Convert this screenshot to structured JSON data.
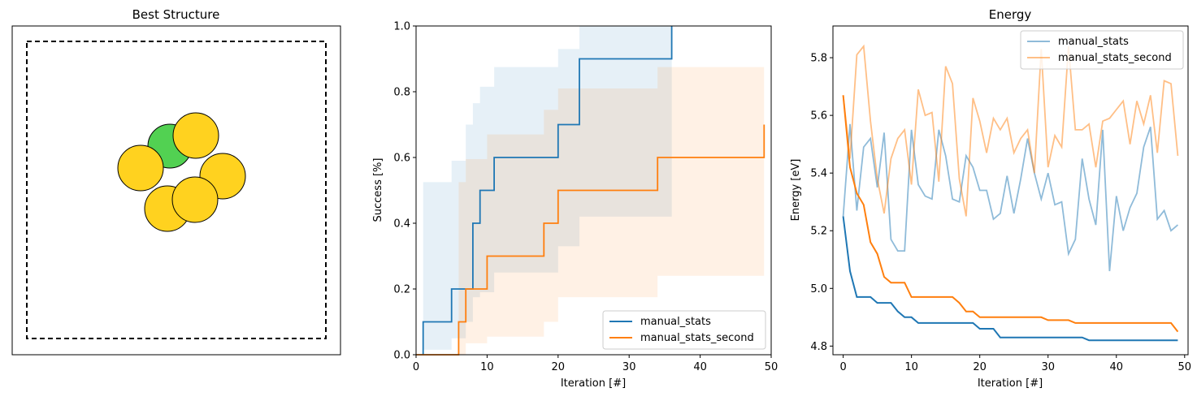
{
  "chart_data": [
    {
      "type": "structure",
      "title": "Best Structure",
      "colors": {
        "carbon": "#52d152",
        "gold": "#ffd21f",
        "outline": "#000000"
      }
    },
    {
      "type": "step",
      "title": "",
      "xlabel": "Iteration [#]",
      "ylabel": "Success [%]",
      "xlim": [
        0,
        50
      ],
      "ylim": [
        0,
        1.0
      ],
      "xticks": [
        "0",
        "10",
        "20",
        "30",
        "40",
        "50"
      ],
      "yticks": [
        "0.0",
        "0.2",
        "0.4",
        "0.6",
        "0.8",
        "1.0"
      ],
      "legend_position": "lower-right",
      "series": [
        {
          "name": "manual_stats",
          "color": "#1f77b4",
          "steps": [
            [
              1,
              0.0
            ],
            [
              1,
              0.1
            ],
            [
              5,
              0.1
            ],
            [
              5,
              0.2
            ],
            [
              8,
              0.2
            ],
            [
              8,
              0.4
            ],
            [
              9,
              0.4
            ],
            [
              9,
              0.5
            ],
            [
              11,
              0.5
            ],
            [
              11,
              0.6
            ],
            [
              20,
              0.6
            ],
            [
              20,
              0.7
            ],
            [
              23,
              0.7
            ],
            [
              23,
              0.9
            ],
            [
              36,
              0.9
            ],
            [
              36,
              1.0
            ]
          ],
          "band": [
            [
              1,
              0.015,
              0.525
            ],
            [
              5,
              0.05,
              0.59
            ],
            [
              7,
              0.1,
              0.7
            ],
            [
              8,
              0.175,
              0.765
            ],
            [
              9,
              0.19,
              0.815
            ],
            [
              11,
              0.25,
              0.875
            ],
            [
              20,
              0.33,
              0.93
            ],
            [
              23,
              0.42,
              1.0
            ],
            [
              36,
              0.42,
              1.0
            ]
          ]
        },
        {
          "name": "manual_stats_second",
          "color": "#ff7f0e",
          "steps": [
            [
              0,
              0.0
            ],
            [
              6,
              0.0
            ],
            [
              6,
              0.1
            ],
            [
              7,
              0.1
            ],
            [
              7,
              0.2
            ],
            [
              10,
              0.2
            ],
            [
              10,
              0.3
            ],
            [
              18,
              0.3
            ],
            [
              18,
              0.4
            ],
            [
              20,
              0.4
            ],
            [
              20,
              0.5
            ],
            [
              34,
              0.5
            ],
            [
              34,
              0.6
            ],
            [
              49,
              0.6
            ],
            [
              49,
              0.7
            ]
          ],
          "band": [
            [
              6,
              0.0,
              0.525
            ],
            [
              7,
              0.035,
              0.595
            ],
            [
              10,
              0.055,
              0.67
            ],
            [
              18,
              0.1,
              0.745
            ],
            [
              20,
              0.175,
              0.81
            ],
            [
              23,
              0.175,
              0.81
            ],
            [
              34,
              0.24,
              0.875
            ],
            [
              49,
              0.33,
              0.875
            ]
          ]
        }
      ]
    },
    {
      "type": "line",
      "title": "Energy",
      "xlabel": "Iteration [#]",
      "ylabel": "Energy [eV]",
      "xlim": [
        -1.5,
        50.5
      ],
      "ylim": [
        4.77,
        5.91
      ],
      "xticks": [
        "0",
        "10",
        "20",
        "30",
        "40",
        "50"
      ],
      "yticks": [
        "4.8",
        "5.0",
        "5.2",
        "5.4",
        "5.6",
        "5.8"
      ],
      "legend_position": "upper-right",
      "series": [
        {
          "name": "manual_stats",
          "color": "#1f77b4",
          "raw": [
            5.25,
            5.57,
            5.27,
            5.49,
            5.52,
            5.35,
            5.54,
            5.17,
            5.13,
            5.13,
            5.55,
            5.36,
            5.32,
            5.31,
            5.55,
            5.46,
            5.31,
            5.3,
            5.46,
            5.42,
            5.34,
            5.34,
            5.24,
            5.26,
            5.39,
            5.26,
            5.38,
            5.52,
            5.4,
            5.31,
            5.4,
            5.29,
            5.3,
            5.12,
            5.17,
            5.45,
            5.31,
            5.22,
            5.55,
            5.06,
            5.32,
            5.2,
            5.28,
            5.33,
            5.49,
            5.56,
            5.24,
            5.27,
            5.2,
            5.22
          ],
          "best": [
            5.25,
            5.06,
            4.97,
            4.97,
            4.97,
            4.95,
            4.95,
            4.95,
            4.92,
            4.9,
            4.9,
            4.88,
            4.88,
            4.88,
            4.88,
            4.88,
            4.88,
            4.88,
            4.88,
            4.88,
            4.86,
            4.86,
            4.86,
            4.83,
            4.83,
            4.83,
            4.83,
            4.83,
            4.83,
            4.83,
            4.83,
            4.83,
            4.83,
            4.83,
            4.83,
            4.83,
            4.82,
            4.82,
            4.82,
            4.82,
            4.82,
            4.82,
            4.82,
            4.82,
            4.82,
            4.82,
            4.82,
            4.82,
            4.82,
            4.82
          ]
        },
        {
          "name": "manual_stats_second",
          "color": "#ff7f0e",
          "raw": [
            5.67,
            5.45,
            5.81,
            5.84,
            5.58,
            5.38,
            5.26,
            5.45,
            5.52,
            5.55,
            5.36,
            5.69,
            5.6,
            5.61,
            5.37,
            5.77,
            5.71,
            5.38,
            5.25,
            5.66,
            5.58,
            5.47,
            5.59,
            5.55,
            5.59,
            5.47,
            5.52,
            5.55,
            5.4,
            5.83,
            5.42,
            5.53,
            5.49,
            5.84,
            5.55,
            5.55,
            5.57,
            5.42,
            5.58,
            5.59,
            5.62,
            5.65,
            5.5,
            5.65,
            5.57,
            5.67,
            5.47,
            5.72,
            5.71,
            5.46
          ],
          "best": [
            5.67,
            5.42,
            5.33,
            5.29,
            5.16,
            5.12,
            5.04,
            5.02,
            5.02,
            5.02,
            4.97,
            4.97,
            4.97,
            4.97,
            4.97,
            4.97,
            4.97,
            4.95,
            4.92,
            4.92,
            4.9,
            4.9,
            4.9,
            4.9,
            4.9,
            4.9,
            4.9,
            4.9,
            4.9,
            4.9,
            4.89,
            4.89,
            4.89,
            4.89,
            4.88,
            4.88,
            4.88,
            4.88,
            4.88,
            4.88,
            4.88,
            4.88,
            4.88,
            4.88,
            4.88,
            4.88,
            4.88,
            4.88,
            4.88,
            4.85
          ]
        }
      ]
    }
  ]
}
